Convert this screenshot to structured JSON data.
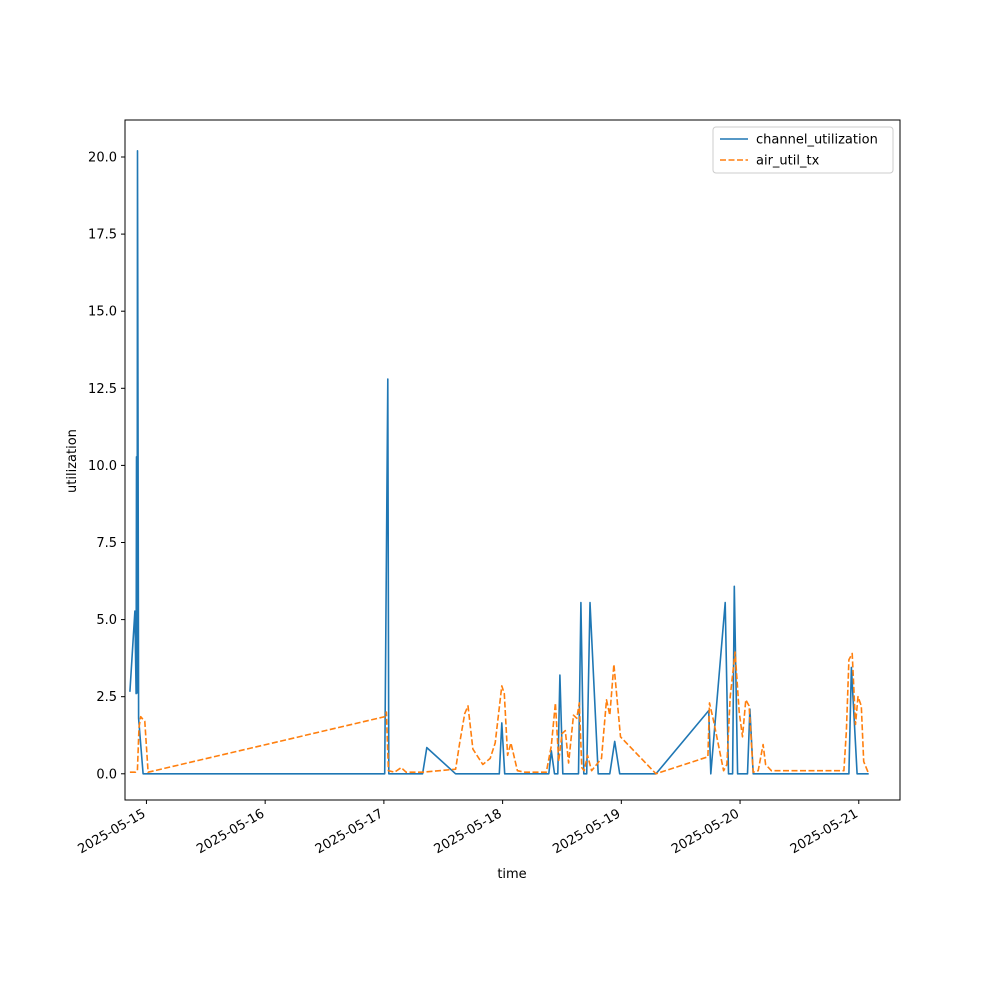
{
  "chart_data": {
    "type": "line",
    "xlabel": "time",
    "ylabel": "utilization",
    "x_type": "datetime",
    "xlim": [
      "2025-05-14T19:40",
      "2025-05-21T08:20"
    ],
    "ylim": [
      -0.85,
      21.2
    ],
    "x_ticks": [
      "2025-05-15",
      "2025-05-16",
      "2025-05-17",
      "2025-05-18",
      "2025-05-19",
      "2025-05-20",
      "2025-05-21"
    ],
    "y_ticks": [
      "0.0",
      "2.5",
      "5.0",
      "7.5",
      "10.0",
      "12.5",
      "15.0",
      "17.5",
      "20.0"
    ],
    "grid": false,
    "legend": "top-right",
    "series": [
      {
        "name": "channel_utilization",
        "color": "#1f77b4",
        "style": "solid",
        "points": [
          [
            "2025-05-14T20:40",
            2.66
          ],
          [
            "2025-05-14T21:40",
            5.28
          ],
          [
            "2025-05-14T21:55",
            2.6
          ],
          [
            "2025-05-14T22:00",
            10.28
          ],
          [
            "2025-05-14T22:07",
            2.62
          ],
          [
            "2025-05-14T22:12",
            20.2
          ],
          [
            "2025-05-14T22:25",
            1.8
          ],
          [
            "2025-05-14T23:20",
            0.0
          ],
          [
            "2025-05-17T00:10",
            0.0
          ],
          [
            "2025-05-17T00:48",
            12.8
          ],
          [
            "2025-05-17T01:00",
            0.0
          ],
          [
            "2025-05-17T07:50",
            0.0
          ],
          [
            "2025-05-17T08:40",
            0.85
          ],
          [
            "2025-05-17T14:30",
            0.0
          ],
          [
            "2025-05-17T23:20",
            0.0
          ],
          [
            "2025-05-17T23:50",
            1.65
          ],
          [
            "2025-05-18T00:25",
            0.0
          ],
          [
            "2025-05-18T09:20",
            0.0
          ],
          [
            "2025-05-18T09:50",
            0.75
          ],
          [
            "2025-05-18T10:30",
            0.0
          ],
          [
            "2025-05-18T11:10",
            0.0
          ],
          [
            "2025-05-18T11:35",
            3.2
          ],
          [
            "2025-05-18T12:10",
            0.0
          ],
          [
            "2025-05-18T15:20",
            0.0
          ],
          [
            "2025-05-18T15:50",
            5.55
          ],
          [
            "2025-05-18T16:25",
            0.0
          ],
          [
            "2025-05-18T17:00",
            0.0
          ],
          [
            "2025-05-18T17:40",
            5.55
          ],
          [
            "2025-05-18T19:20",
            0.0
          ],
          [
            "2025-05-18T21:40",
            0.0
          ],
          [
            "2025-05-18T22:40",
            1.05
          ],
          [
            "2025-05-18T23:40",
            0.0
          ],
          [
            "2025-05-19T07:00",
            0.0
          ],
          [
            "2025-05-19T17:40",
            2.05
          ],
          [
            "2025-05-19T18:05",
            0.0
          ],
          [
            "2025-05-19T21:00",
            5.55
          ],
          [
            "2025-05-19T21:40",
            0.0
          ],
          [
            "2025-05-19T22:30",
            0.0
          ],
          [
            "2025-05-19T22:50",
            6.08
          ],
          [
            "2025-05-19T23:30",
            0.0
          ],
          [
            "2025-05-20T01:30",
            0.0
          ],
          [
            "2025-05-20T02:00",
            2.1
          ],
          [
            "2025-05-20T02:40",
            0.0
          ],
          [
            "2025-05-20T22:00",
            0.0
          ],
          [
            "2025-05-20T22:30",
            3.45
          ],
          [
            "2025-05-20T23:40",
            0.0
          ],
          [
            "2025-05-21T02:00",
            0.0
          ]
        ]
      },
      {
        "name": "air_util_tx",
        "color": "#ff7f0e",
        "style": "dashed",
        "points": [
          [
            "2025-05-14T20:40",
            0.05
          ],
          [
            "2025-05-14T21:50",
            0.05
          ],
          [
            "2025-05-14T22:10",
            0.1
          ],
          [
            "2025-05-14T22:30",
            1.5
          ],
          [
            "2025-05-14T22:50",
            1.85
          ],
          [
            "2025-05-14T23:40",
            1.7
          ],
          [
            "2025-05-15T00:20",
            0.05
          ],
          [
            "2025-05-17T00:10",
            1.85
          ],
          [
            "2025-05-17T00:30",
            2.0
          ],
          [
            "2025-05-17T00:55",
            0.1
          ],
          [
            "2025-05-17T02:10",
            0.05
          ],
          [
            "2025-05-17T03:30",
            0.2
          ],
          [
            "2025-05-17T04:30",
            0.05
          ],
          [
            "2025-05-17T07:50",
            0.05
          ],
          [
            "2025-05-17T14:30",
            0.15
          ],
          [
            "2025-05-17T15:20",
            1.0
          ],
          [
            "2025-05-17T16:20",
            1.95
          ],
          [
            "2025-05-17T17:00",
            2.2
          ],
          [
            "2025-05-17T18:00",
            0.8
          ],
          [
            "2025-05-17T20:00",
            0.3
          ],
          [
            "2025-05-17T21:30",
            0.5
          ],
          [
            "2025-05-17T22:30",
            1.0
          ],
          [
            "2025-05-17T23:50",
            2.85
          ],
          [
            "2025-05-18T00:20",
            2.6
          ],
          [
            "2025-05-18T01:00",
            0.6
          ],
          [
            "2025-05-18T01:40",
            1.0
          ],
          [
            "2025-05-18T03:00",
            0.1
          ],
          [
            "2025-05-18T04:30",
            0.05
          ],
          [
            "2025-05-18T08:50",
            0.05
          ],
          [
            "2025-05-18T09:50",
            0.9
          ],
          [
            "2025-05-18T10:40",
            2.3
          ],
          [
            "2025-05-18T11:20",
            0.4
          ],
          [
            "2025-05-18T12:00",
            1.3
          ],
          [
            "2025-05-18T12:40",
            1.4
          ],
          [
            "2025-05-18T13:20",
            0.35
          ],
          [
            "2025-05-18T14:20",
            1.9
          ],
          [
            "2025-05-18T15:00",
            1.8
          ],
          [
            "2025-05-18T15:30",
            2.3
          ],
          [
            "2025-05-18T16:00",
            0.2
          ],
          [
            "2025-05-18T16:30",
            0.1
          ],
          [
            "2025-05-18T17:10",
            0.6
          ],
          [
            "2025-05-18T18:00",
            0.1
          ],
          [
            "2025-05-18T20:00",
            0.5
          ],
          [
            "2025-05-18T21:00",
            2.4
          ],
          [
            "2025-05-18T21:40",
            1.9
          ],
          [
            "2025-05-18T22:30",
            3.55
          ],
          [
            "2025-05-18T23:50",
            1.2
          ],
          [
            "2025-05-19T07:00",
            0.0
          ],
          [
            "2025-05-19T17:30",
            0.55
          ],
          [
            "2025-05-19T17:50",
            2.3
          ],
          [
            "2025-05-19T18:40",
            1.7
          ],
          [
            "2025-05-19T20:40",
            0.1
          ],
          [
            "2025-05-19T21:20",
            0.3
          ],
          [
            "2025-05-19T22:00",
            2.5
          ],
          [
            "2025-05-19T23:00",
            3.95
          ],
          [
            "2025-05-19T23:50",
            2.0
          ],
          [
            "2025-05-20T00:30",
            1.2
          ],
          [
            "2025-05-20T01:10",
            2.4
          ],
          [
            "2025-05-20T01:50",
            2.2
          ],
          [
            "2025-05-20T02:40",
            0.05
          ],
          [
            "2025-05-20T03:40",
            0.1
          ],
          [
            "2025-05-20T04:40",
            0.95
          ],
          [
            "2025-05-20T05:10",
            0.3
          ],
          [
            "2025-05-20T06:20",
            0.1
          ],
          [
            "2025-05-20T21:00",
            0.1
          ],
          [
            "2025-05-20T21:30",
            1.4
          ],
          [
            "2025-05-20T22:00",
            3.7
          ],
          [
            "2025-05-20T22:40",
            3.9
          ],
          [
            "2025-05-20T23:20",
            1.6
          ],
          [
            "2025-05-20T23:50",
            2.5
          ],
          [
            "2025-05-21T00:30",
            2.2
          ],
          [
            "2025-05-21T01:00",
            0.4
          ],
          [
            "2025-05-21T02:00",
            0.0
          ]
        ]
      }
    ]
  }
}
